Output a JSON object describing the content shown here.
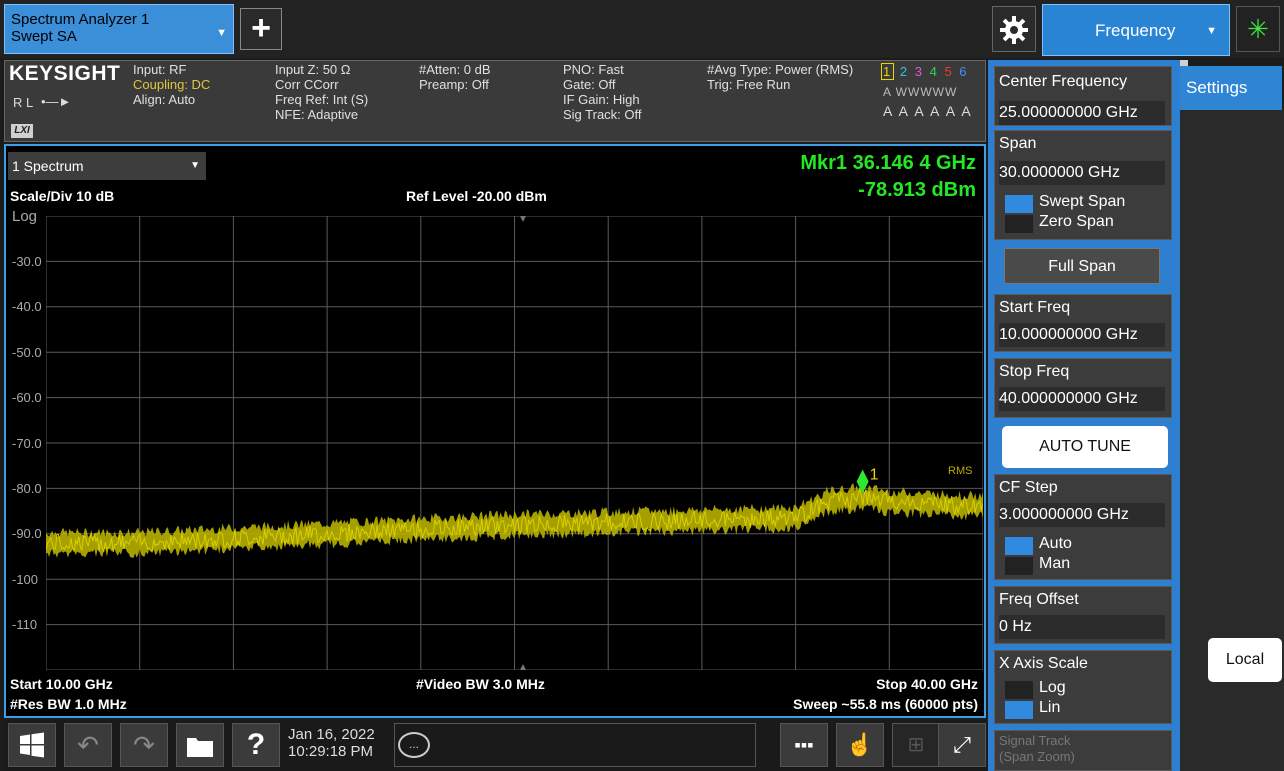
{
  "mode_tab": {
    "line1": "Spectrum Analyzer 1",
    "line2": "Swept SA"
  },
  "add_label": "+",
  "menu_tab": {
    "label": "Frequency"
  },
  "status": {
    "logo": "KEYSIGHT",
    "rl": "R L",
    "lxi": "LXI",
    "col1": [
      "Input: RF",
      "Coupling: DC",
      "Align: Auto"
    ],
    "col2": [
      "Input Z: 50 Ω",
      "Corr CCorr",
      "Freq Ref: Int (S)",
      "NFE: Adaptive"
    ],
    "col3": [
      "#Atten: 0 dB",
      "Preamp: Off"
    ],
    "col4": [
      "PNO: Fast",
      "Gate: Off",
      "IF Gain: High",
      "Sig Track: Off"
    ],
    "col5": [
      "#Avg Type: Power (RMS)",
      "Trig: Free Run"
    ],
    "trace_nums": [
      "1",
      "2",
      "3",
      "4",
      "5",
      "6"
    ],
    "trace_nums_colors": [
      "#e6d800",
      "#27c8e6",
      "#e054d8",
      "#2ad84a",
      "#e8402a",
      "#4a8aff"
    ],
    "trace_w": "A WWWWW",
    "trace_a": "A A A A A A"
  },
  "graph": {
    "window_tab": "1 Spectrum",
    "marker_freq": "Mkr1  36.146 4 GHz",
    "marker_amp": "-78.913 dBm",
    "scale_div": "Scale/Div 10 dB",
    "ref_level": "Ref Level -20.00 dBm",
    "log_label": "Log",
    "y_ticks": [
      "-30.0",
      "-40.0",
      "-50.0",
      "-60.0",
      "-70.0",
      "-80.0",
      "-90.0",
      "-100",
      "-110"
    ],
    "start": "Start 10.00 GHz",
    "res_bw": "#Res BW 1.0 MHz",
    "vbw": "#Video BW 3.0 MHz",
    "stop": "Stop 40.00 GHz",
    "sweep": "Sweep ~55.8 ms (60000 pts)",
    "detector": "RMS",
    "marker_label": "1",
    "trace_color": "#c8c000",
    "marker_color": "#2ee82e"
  },
  "chart_data": {
    "type": "line",
    "xlabel": "",
    "ylabel": "",
    "xlim": [
      10,
      40
    ],
    "ylim": [
      -120,
      -20
    ],
    "x": [
      10,
      13,
      16,
      19,
      22,
      25,
      28,
      31,
      34,
      35,
      36.15,
      37,
      40
    ],
    "series": [
      {
        "values": [
          -92,
          -92,
          -91,
          -90,
          -89,
          -88,
          -87.5,
          -87,
          -86.5,
          -83,
          -82,
          -83,
          -84
        ]
      }
    ]
  },
  "taskbar": {
    "date": "Jan 16, 2022",
    "time": "10:29:18 PM",
    "msg": "..."
  },
  "softkeys": {
    "center_freq": {
      "label": "Center Frequency",
      "value": "25.000000000 GHz"
    },
    "span": {
      "label": "Span",
      "value": "30.0000000 GHz",
      "opt1": "Swept Span",
      "opt2": "Zero Span"
    },
    "full_span": "Full Span",
    "start_freq": {
      "label": "Start Freq",
      "value": "10.000000000 GHz"
    },
    "stop_freq": {
      "label": "Stop Freq",
      "value": "40.000000000 GHz"
    },
    "auto_tune": "AUTO TUNE",
    "cf_step": {
      "label": "CF Step",
      "value": "3.000000000 GHz",
      "opt1": "Auto",
      "opt2": "Man"
    },
    "freq_offset": {
      "label": "Freq Offset",
      "value": "0 Hz"
    },
    "x_axis_scale": {
      "label": "X Axis Scale",
      "opt1": "Log",
      "opt2": "Lin"
    },
    "signal_track": {
      "label": "Signal Track",
      "sub": "(Span Zoom)"
    }
  },
  "settings_tab": "Settings",
  "local_button": "Local"
}
